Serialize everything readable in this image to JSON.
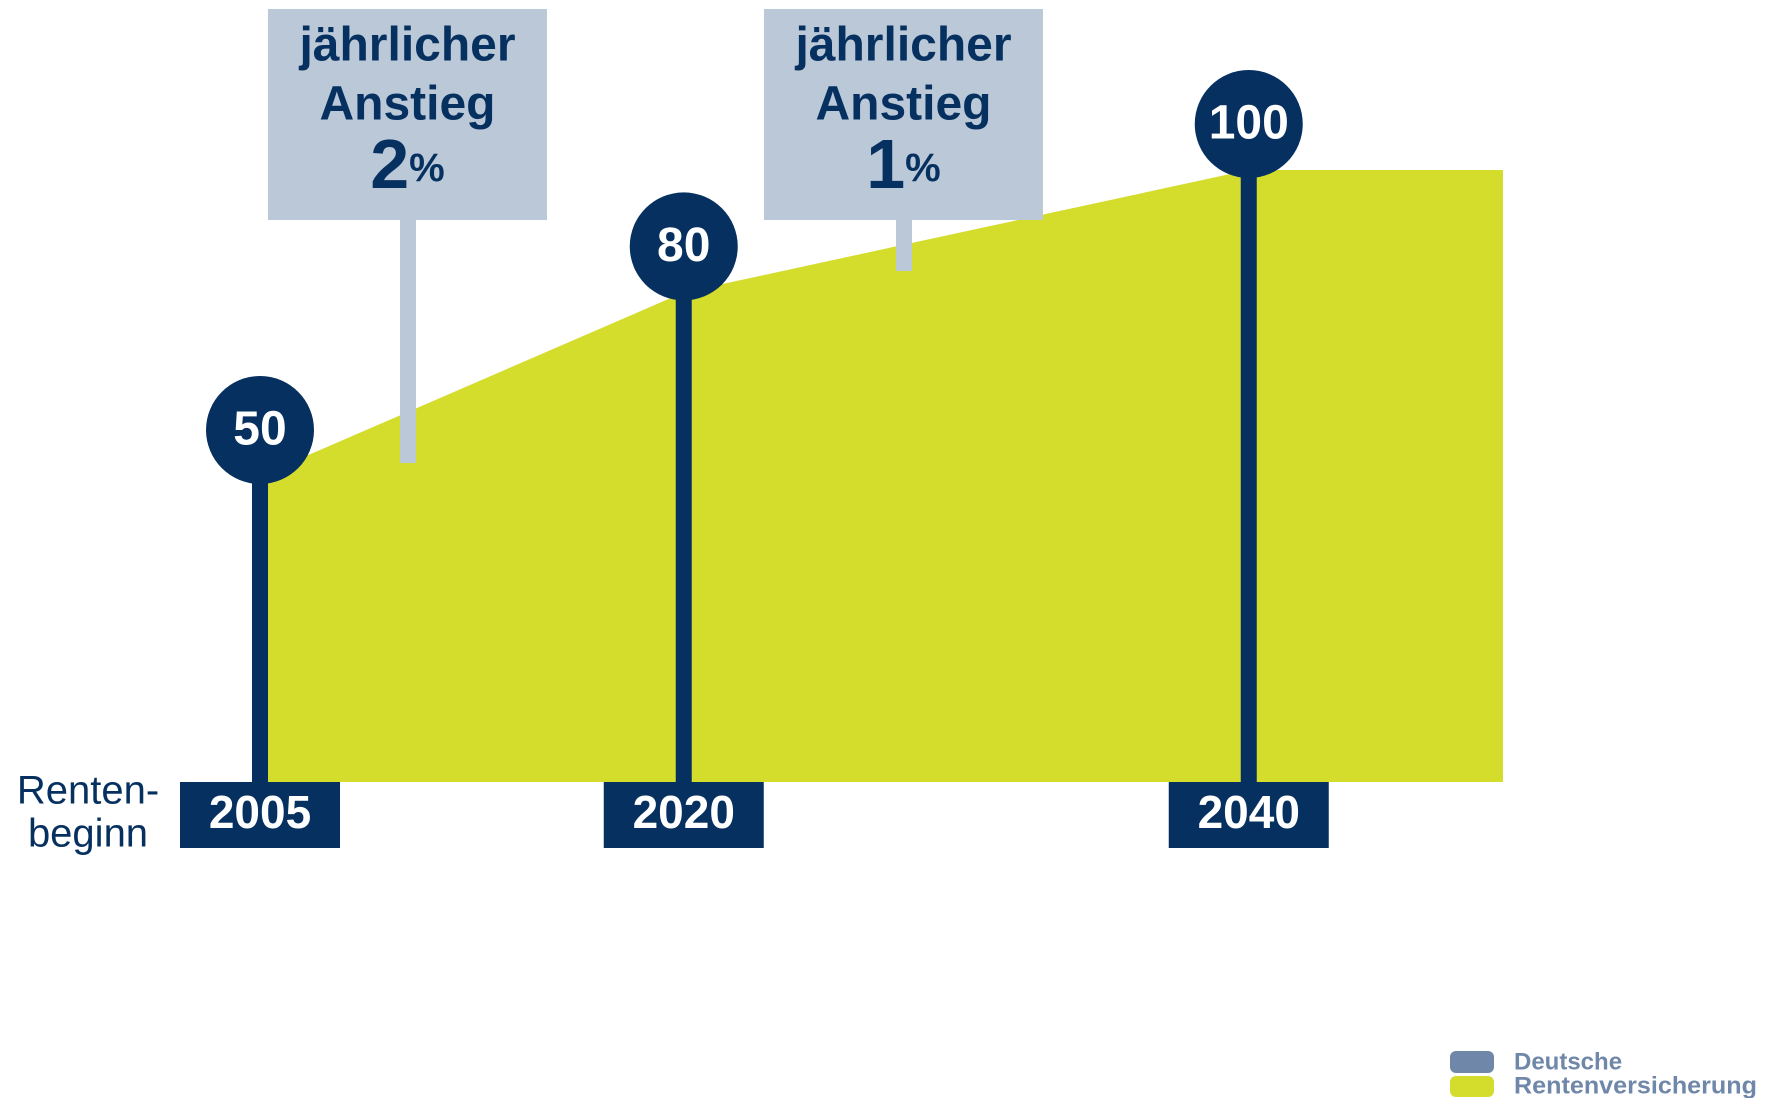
{
  "chart_data": {
    "type": "area",
    "x": [
      2005,
      2020,
      2040
    ],
    "values": [
      50,
      80,
      100
    ],
    "color": "#d4dc2c",
    "marker_color": "#06305f",
    "xlim": [
      2005,
      2049
    ],
    "ylim": [
      0,
      100
    ],
    "xlabel": [
      "Renten-",
      "beginn"
    ],
    "annotations": [
      {
        "lines": [
          "jährlicher",
          "Anstieg"
        ],
        "value": 2,
        "unit": "%"
      },
      {
        "lines": [
          "jährlicher",
          "Anstieg"
        ],
        "value": 1,
        "unit": "%"
      }
    ],
    "logo": [
      "Deutsche",
      "Rentenversicherung"
    ]
  }
}
